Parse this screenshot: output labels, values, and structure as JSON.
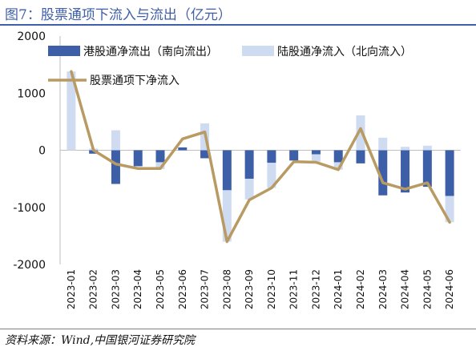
{
  "title": "图7：股票通项下流入与流出（亿元）",
  "source": "资料来源：Wind,中国银河证券研究院",
  "chart_data": {
    "type": "bar",
    "categories": [
      "2023-01",
      "2023-02",
      "2023-03",
      "2023-04",
      "2023-05",
      "2023-06",
      "2023-07",
      "2023-08",
      "2023-09",
      "2023-10",
      "2023-11",
      "2023-12",
      "2024-01",
      "2024-02",
      "2024-03",
      "2024-04",
      "2024-05",
      "2024-06"
    ],
    "ylim": [
      -2000,
      2000
    ],
    "yticks": [
      2000,
      1000,
      0,
      -1000,
      -2000
    ],
    "grid": false,
    "legend_position": "top",
    "series": [
      {
        "name": "港股通净流出（南向流出）",
        "type": "bar",
        "color": "#3d5fa8",
        "values": [
          0,
          -60,
          -590,
          -280,
          -210,
          50,
          -140,
          -700,
          -500,
          -220,
          -180,
          -70,
          -210,
          -230,
          -790,
          -740,
          -640,
          -800
        ]
      },
      {
        "name": "陆股通净流入（北向流入）",
        "type": "bar",
        "color": "#cfdbf1",
        "values": [
          1380,
          30,
          350,
          0,
          -120,
          0,
          470,
          -900,
          -360,
          -440,
          0,
          -130,
          -130,
          610,
          220,
          60,
          80,
          -460
        ]
      },
      {
        "name": "股票通项下净流入",
        "type": "line",
        "color": "#b89a62",
        "values": [
          1380,
          0,
          -240,
          -320,
          -320,
          200,
          320,
          -1600,
          -870,
          -660,
          -200,
          -210,
          -340,
          380,
          -570,
          -680,
          -570,
          -1260
        ]
      }
    ]
  }
}
